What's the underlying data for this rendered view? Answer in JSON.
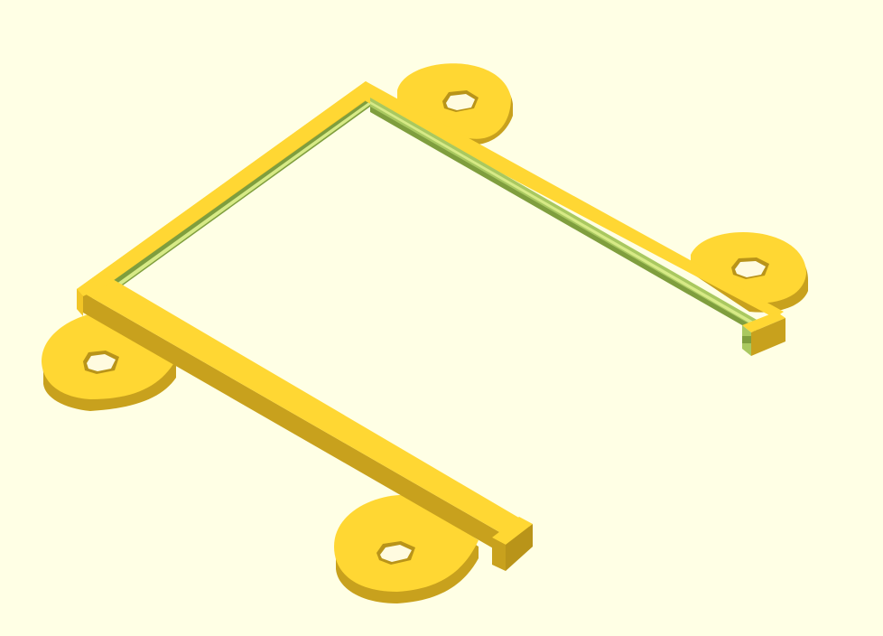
{
  "scene": {
    "description_kind": "openscad-render",
    "part": "bracket-frame-with-mounting-tabs",
    "colors": {
      "background": "#ffffe5",
      "face_top": "#ffd733",
      "face_side_light": "#f2c526",
      "face_side_dark": "#c8a11d",
      "face_side_darker": "#b99419",
      "hole_inner": "#e8df9a",
      "cut_green_light": "#d7ea86",
      "cut_green_mid": "#a9c860",
      "cut_green_dark": "#7f9e3e"
    },
    "mounting_holes": 4
  }
}
